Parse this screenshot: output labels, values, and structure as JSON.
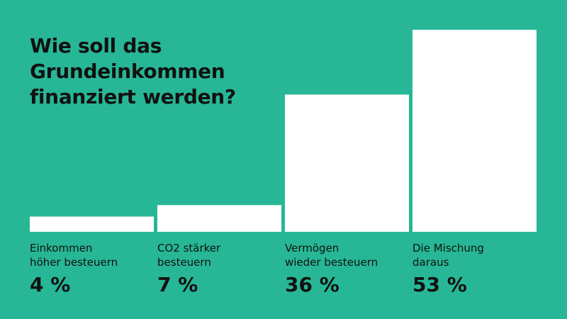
{
  "colors": {
    "background": "#27b796",
    "bar": "#ffffff",
    "text": "#111111"
  },
  "chart_data": {
    "type": "bar",
    "title_lines": [
      "Wie soll das",
      "Grundeinkommen",
      "finanziert werden?"
    ],
    "categories": [
      [
        "Einkommen",
        "höher besteuern"
      ],
      [
        "CO2 stärker",
        "besteuern"
      ],
      [
        "Vermögen",
        "wieder besteuern"
      ],
      [
        "Die Mischung",
        "daraus"
      ]
    ],
    "values": [
      4,
      7,
      36,
      53
    ],
    "value_labels": [
      "4 %",
      "7 %",
      "36 %",
      "53 %"
    ],
    "ylim": [
      0,
      53
    ],
    "grid": false,
    "axes_visible": false
  }
}
